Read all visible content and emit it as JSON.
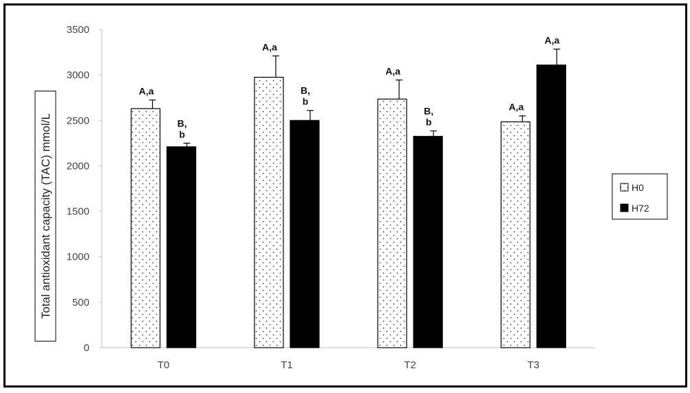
{
  "chart_data": {
    "type": "bar",
    "categories": [
      "T0",
      "T1",
      "T2",
      "T3"
    ],
    "series": [
      {
        "name": "H0",
        "values": [
          2630,
          2975,
          2735,
          2485
        ],
        "errors": [
          95,
          235,
          210,
          65
        ],
        "labels": [
          "A,a",
          "A,a",
          "A,a",
          "A,a"
        ],
        "fill": "dotted"
      },
      {
        "name": "H72",
        "values": [
          2210,
          2500,
          2325,
          3110
        ],
        "errors": [
          40,
          110,
          60,
          175
        ],
        "labels": [
          "B,\nb",
          "B,\nb",
          "B,\nb",
          "A,a"
        ],
        "fill": "#000000"
      }
    ],
    "ylabel": "Total antioxidant capacity  (TAC) mmol/L",
    "ylim": [
      0,
      3500
    ],
    "yticks": [
      0,
      500,
      1000,
      1500,
      2000,
      2500,
      3000,
      3500
    ],
    "grid": false,
    "legend_position": "right"
  }
}
